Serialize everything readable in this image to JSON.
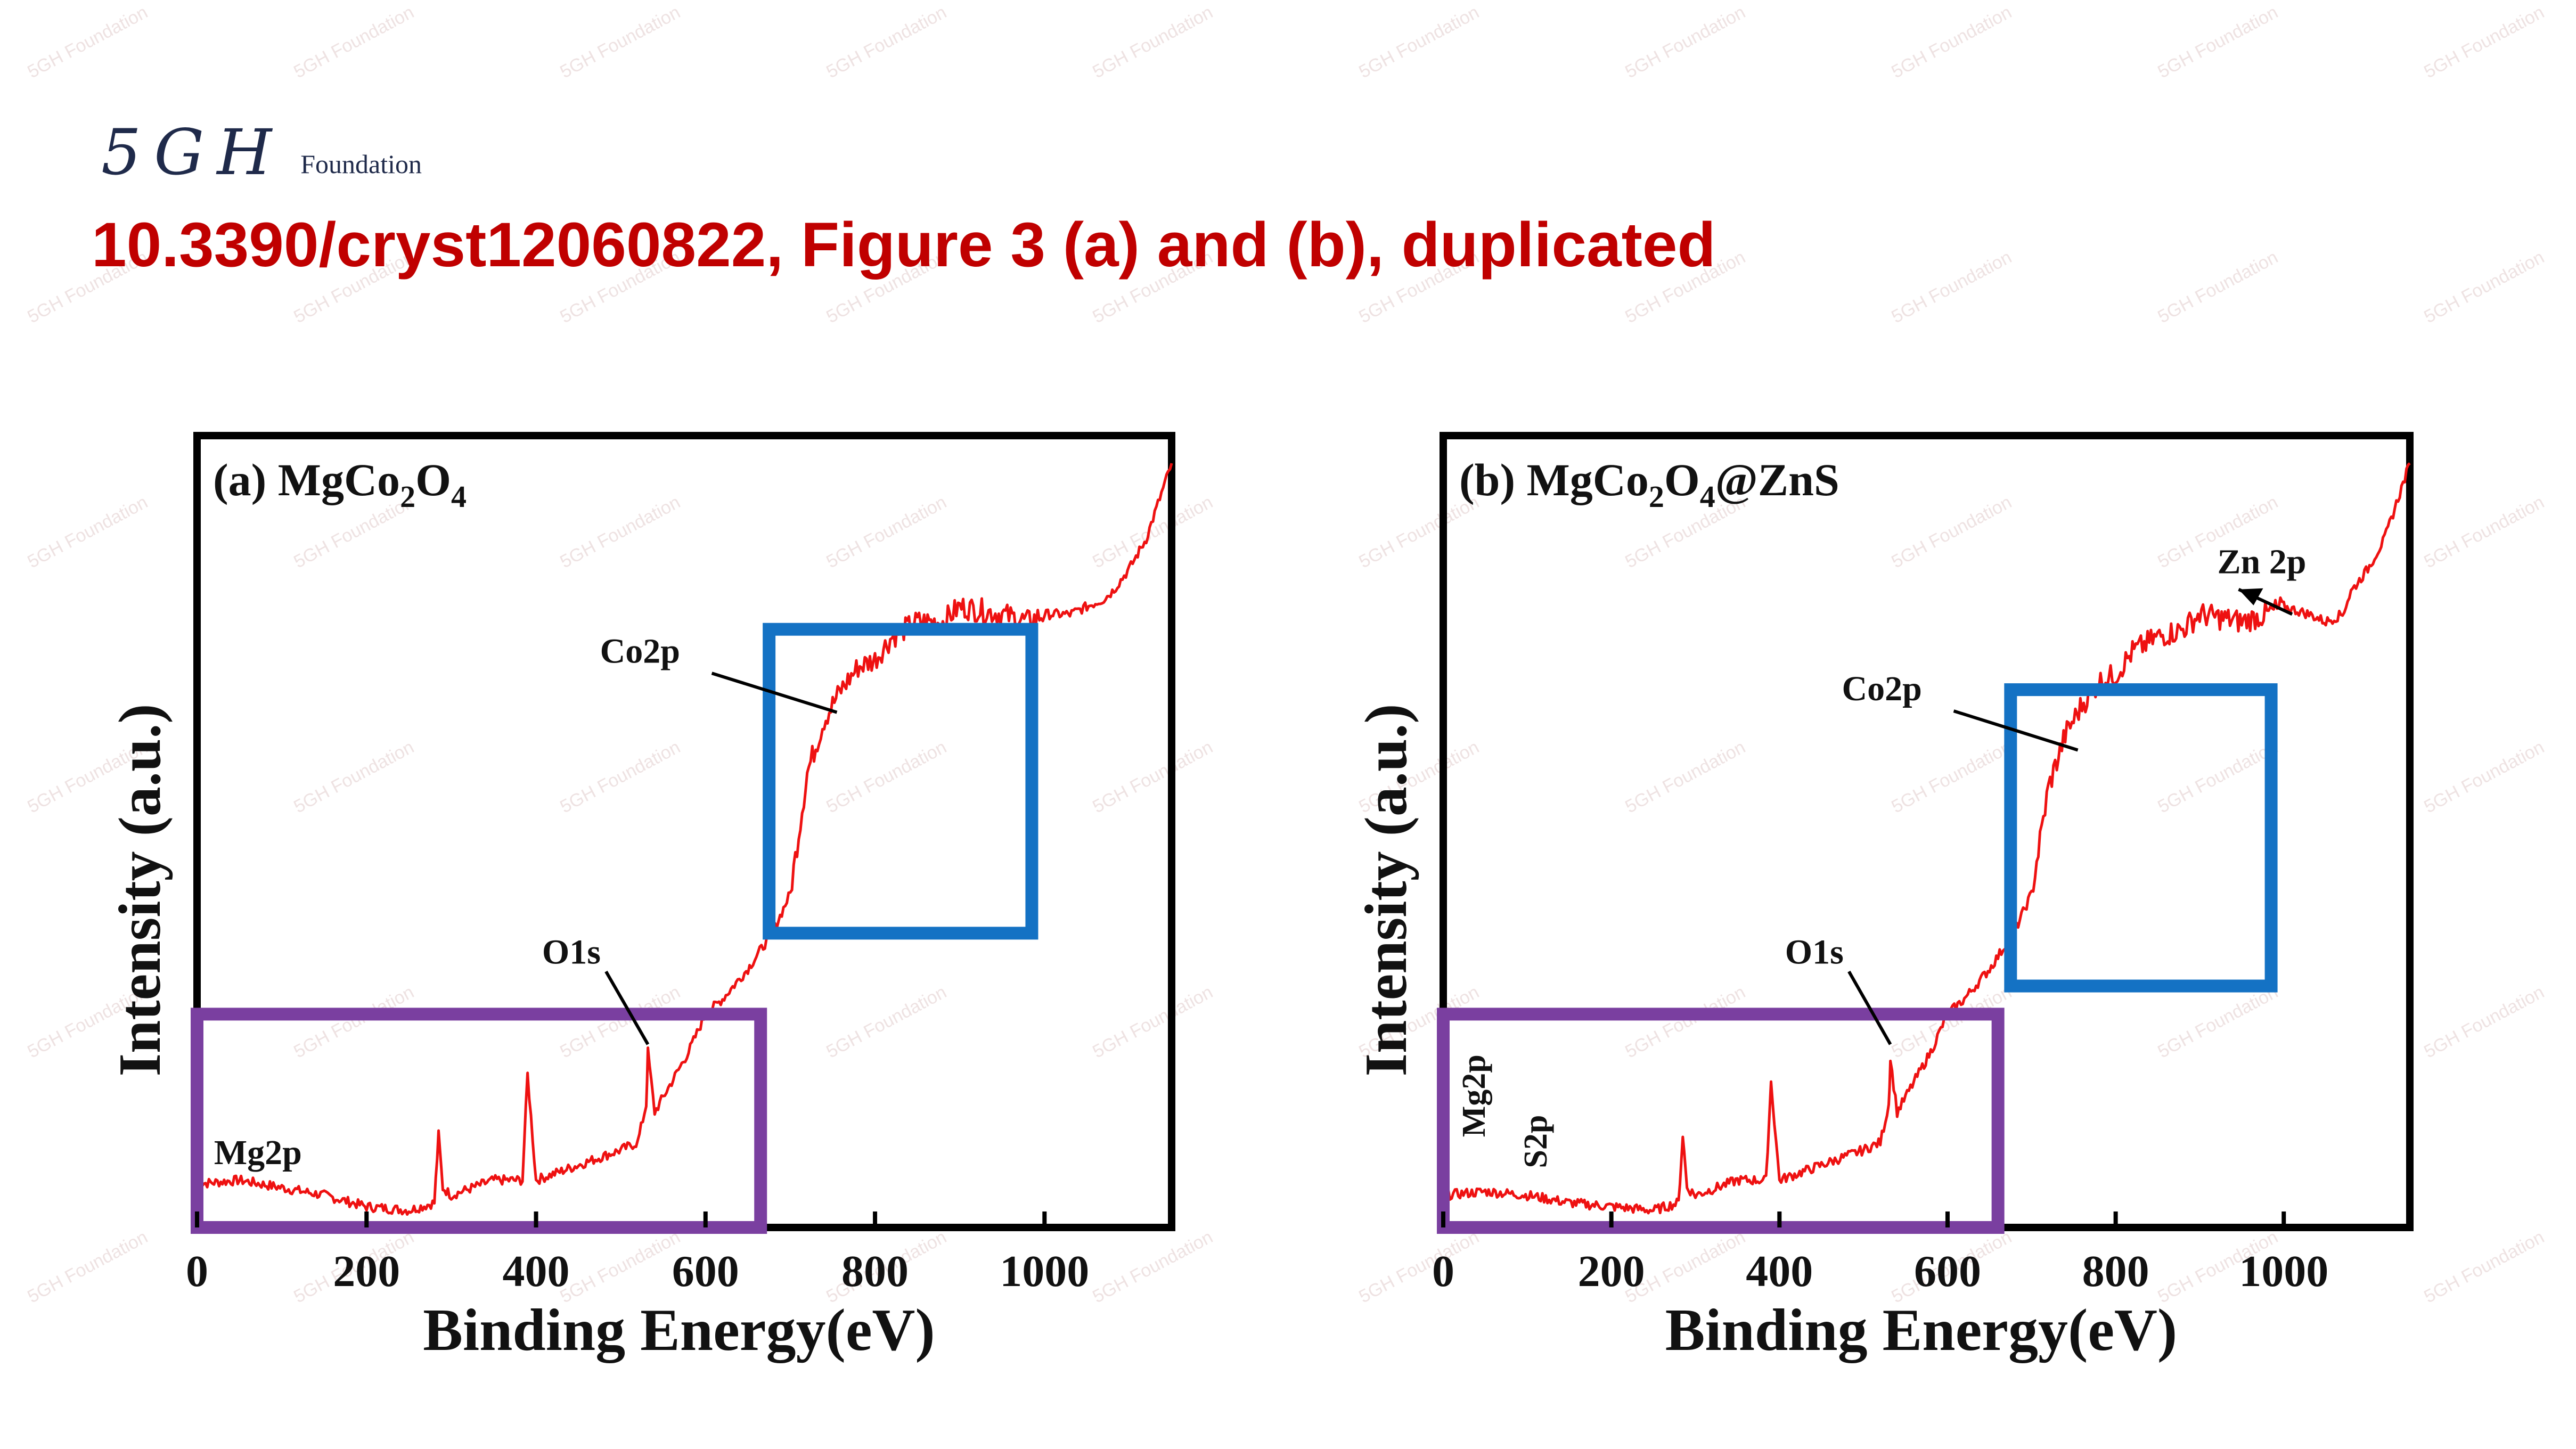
{
  "logo": {
    "mark": "5GH",
    "text": "Foundation"
  },
  "title": "10.3390/cryst12060822, Figure 3 (a) and (b), duplicated",
  "watermark": "5GH Foundation",
  "colors": {
    "title": "#c00000",
    "spectrum": "#ee1111",
    "purple_box": "#7a3fa0",
    "blue_box": "#1472c4"
  },
  "chart_data": [
    {
      "type": "line",
      "panel_label": "(a) MgCo",
      "panel_sub": [
        "2",
        "O",
        "4"
      ],
      "xlabel": "Binding Energy(eV)",
      "ylabel": "Intensity (a.u.)",
      "xlim": [
        0,
        1150
      ],
      "ylim": [
        0,
        100
      ],
      "xticks": [
        "0",
        "200",
        "400",
        "600",
        "800",
        "1000"
      ],
      "series": [
        {
          "x": [
            0,
            50,
            100,
            150,
            200,
            250,
            280,
            285,
            290,
            300,
            350,
            384,
            390,
            400,
            450,
            500,
            520,
            530,
            532,
            540,
            560,
            580,
            600,
            620,
            650,
            680,
            700,
            710,
            720,
            740,
            760,
            780,
            800,
            820,
            850,
            880,
            900,
            950,
            980,
            1000,
            1030,
            1050,
            1070,
            1080,
            1100,
            1120,
            1150
          ],
          "y": [
            4.5,
            5,
            4,
            3,
            1.5,
            1,
            2,
            11,
            4,
            3,
            5,
            5,
            19,
            5,
            7,
            9,
            10,
            15,
            22,
            14,
            18,
            22,
            27,
            29,
            33,
            38,
            43,
            51,
            59,
            66,
            70,
            73,
            74,
            77,
            79,
            79,
            81,
            80,
            79,
            80,
            80,
            81,
            82,
            83,
            86,
            90,
            100
          ]
        }
      ],
      "annotations": [
        {
          "text": "Mg2p",
          "x": 20,
          "y": 5
        },
        {
          "text": "O1s",
          "x": 470,
          "y": 33
        },
        {
          "text": "Co2p",
          "x": 620,
          "y": 75
        }
      ],
      "highlight_boxes": [
        {
          "color": "purple",
          "x": [
            0,
            665
          ],
          "y": [
            0,
            27
          ]
        },
        {
          "color": "blue",
          "x": [
            675,
            985
          ],
          "y": [
            39,
            78
          ]
        }
      ]
    },
    {
      "type": "line",
      "panel_label": "(b) MgCo",
      "panel_sub": [
        "2",
        "O",
        "4@ZnS"
      ],
      "xlabel": "Binding Energy(eV)",
      "ylabel": "Intensity (a.u.)",
      "xlim": [
        0,
        1150
      ],
      "ylim": [
        0,
        100
      ],
      "xticks": [
        "0",
        "200",
        "400",
        "600",
        "800",
        "1000"
      ],
      "series": [
        {
          "x": [
            0,
            50,
            100,
            150,
            200,
            250,
            280,
            285,
            290,
            300,
            350,
            384,
            390,
            400,
            450,
            500,
            520,
            530,
            532,
            540,
            560,
            580,
            600,
            620,
            650,
            680,
            700,
            710,
            720,
            740,
            760,
            780,
            800,
            820,
            850,
            880,
            900,
            950,
            980,
            1000,
            1030,
            1050,
            1070,
            1080,
            1100,
            1120,
            1150
          ],
          "y": [
            3,
            3.5,
            3,
            2,
            1.5,
            1,
            2,
            11,
            4,
            3,
            5,
            5,
            18,
            5,
            7,
            9,
            10,
            15,
            21,
            14,
            18,
            22,
            27,
            29,
            33,
            38,
            43,
            50,
            57,
            64,
            68,
            71,
            72,
            75,
            77,
            78,
            80,
            79,
            80,
            81,
            80,
            79,
            80,
            83,
            86,
            90,
            100
          ]
        }
      ],
      "annotations": [
        {
          "text": "Mg2p",
          "x": 5,
          "y": 10
        },
        {
          "text": "S2p",
          "x": 85,
          "y": 8
        },
        {
          "text": "O1s",
          "x": 470,
          "y": 33
        },
        {
          "text": "Co2p",
          "x": 620,
          "y": 70
        },
        {
          "text": "Zn 2p",
          "x": 1035,
          "y": 84
        }
      ],
      "highlight_boxes": [
        {
          "color": "purple",
          "x": [
            0,
            660
          ],
          "y": [
            0,
            27
          ]
        },
        {
          "color": "blue",
          "x": [
            675,
            985
          ],
          "y": [
            32,
            70
          ]
        }
      ]
    }
  ]
}
